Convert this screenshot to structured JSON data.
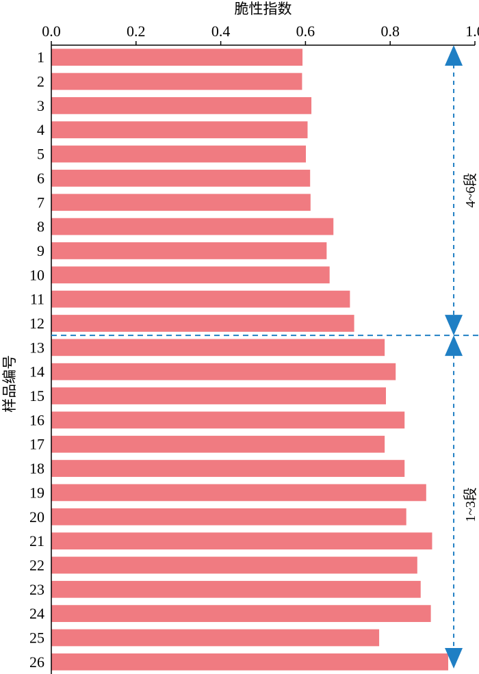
{
  "chart_data": {
    "type": "bar",
    "orientation": "horizontal",
    "x_title": "脆性指数",
    "y_title": "样品编号",
    "xlim": [
      0.0,
      1.0
    ],
    "x_ticks": [
      "0.0",
      "0.2",
      "0.4",
      "0.6",
      "0.8",
      "1.0"
    ],
    "x_axis_position": "top",
    "categories": [
      "1",
      "2",
      "3",
      "4",
      "5",
      "6",
      "7",
      "8",
      "9",
      "10",
      "11",
      "12",
      "13",
      "14",
      "15",
      "16",
      "17",
      "18",
      "19",
      "20",
      "21",
      "22",
      "23",
      "24",
      "25",
      "26"
    ],
    "values": [
      0.593,
      0.592,
      0.614,
      0.605,
      0.601,
      0.611,
      0.612,
      0.666,
      0.65,
      0.657,
      0.705,
      0.715,
      0.787,
      0.813,
      0.79,
      0.834,
      0.787,
      0.834,
      0.885,
      0.838,
      0.899,
      0.864,
      0.872,
      0.896,
      0.774,
      0.937
    ],
    "bar_color": "#f07b81",
    "annotation_color": "#1f7fc4",
    "divider_after_category": "12",
    "segments": [
      {
        "label": "4~6段",
        "from": "1",
        "to": "12"
      },
      {
        "label": "1~3段",
        "from": "13",
        "to": "26"
      }
    ]
  }
}
